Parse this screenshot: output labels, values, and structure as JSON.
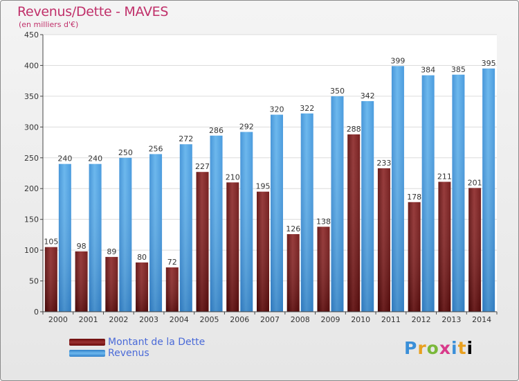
{
  "header": {
    "title": "Revenus/Dette - MAVES",
    "subtitle": "(en milliers d'€)"
  },
  "logo": {
    "text": "Proxiti"
  },
  "colors": {
    "dette": "#7a1414",
    "revenus": "#4aa3e6",
    "title": "#c0306a",
    "legend_text": "#4a6ad8"
  },
  "chart_data": {
    "type": "bar",
    "title": "Revenus/Dette - MAVES",
    "subtitle": "(en milliers d'€)",
    "categories": [
      "2000",
      "2001",
      "2002",
      "2003",
      "2004",
      "2005",
      "2006",
      "2007",
      "2008",
      "2009",
      "2010",
      "2011",
      "2012",
      "2013",
      "2014"
    ],
    "series": [
      {
        "name": "Montant de la Dette",
        "values": [
          105,
          98,
          89,
          80,
          72,
          227,
          210,
          195,
          126,
          138,
          288,
          233,
          178,
          211,
          201
        ]
      },
      {
        "name": "Revenus",
        "values": [
          240,
          240,
          250,
          256,
          272,
          286,
          292,
          320,
          322,
          350,
          342,
          399,
          384,
          385,
          395
        ]
      }
    ],
    "ylim": [
      0,
      450
    ],
    "yticks": [
      0,
      50,
      100,
      150,
      200,
      250,
      300,
      350,
      400,
      450
    ],
    "grid": true,
    "legend": "bottom-left"
  }
}
